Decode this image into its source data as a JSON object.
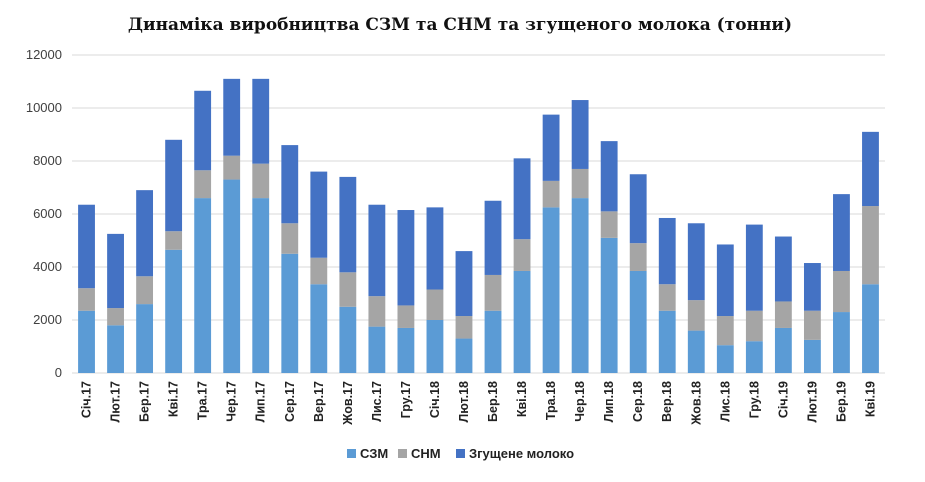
{
  "chart_data": {
    "type": "bar",
    "stacked": true,
    "title": "Динаміка виробництва СЗМ та СНМ та згущеного молока (тонни)",
    "xlabel": "",
    "ylabel": "",
    "ylim": [
      0,
      12000
    ],
    "yticks": [
      0,
      2000,
      4000,
      6000,
      8000,
      10000,
      12000
    ],
    "grid": true,
    "legend_position": "bottom",
    "categories": [
      "Січ.17",
      "Лют.17",
      "Бер.17",
      "Кві.17",
      "Тра.17",
      "Чер.17",
      "Лип.17",
      "Сер.17",
      "Вер.17",
      "Жов.17",
      "Лис.17",
      "Гру.17",
      "Січ.18",
      "Лют.18",
      "Бер.18",
      "Кві.18",
      "Тра.18",
      "Чер.18",
      "Лип.18",
      "Сер.18",
      "Вер.18",
      "Жов.18",
      "Лис.18",
      "Гру.18",
      "Січ.19",
      "Лют.19",
      "Бер.19",
      "Кві.19"
    ],
    "series": [
      {
        "name": "СЗМ",
        "color": "#5b9bd5",
        "values": [
          2350,
          1800,
          2600,
          4650,
          6600,
          7300,
          6600,
          4500,
          3350,
          2500,
          1750,
          1700,
          2000,
          1300,
          2350,
          3850,
          6250,
          6600,
          5100,
          3850,
          2350,
          1600,
          1050,
          1200,
          1700,
          1250,
          2300,
          3350
        ]
      },
      {
        "name": "СНМ",
        "color": "#a5a5a5",
        "values": [
          850,
          650,
          1050,
          700,
          1050,
          900,
          1300,
          1150,
          1000,
          1300,
          1150,
          850,
          1150,
          850,
          1350,
          1200,
          1000,
          1100,
          1000,
          1050,
          1000,
          1150,
          1100,
          1150,
          1000,
          1100,
          1550,
          2950
        ]
      },
      {
        "name": "Згущене молоко",
        "color": "#4472c4",
        "values": [
          3150,
          2800,
          3250,
          3450,
          3000,
          2900,
          3200,
          2950,
          3250,
          3600,
          3450,
          3600,
          3100,
          2450,
          2800,
          3050,
          2500,
          2600,
          2650,
          2600,
          2500,
          2900,
          2700,
          3250,
          2450,
          1800,
          2900,
          2800
        ]
      }
    ]
  }
}
